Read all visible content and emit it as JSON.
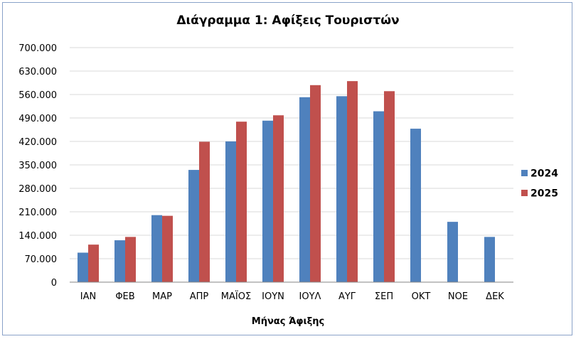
{
  "chart_data": {
    "type": "bar",
    "title": "Διάγραμμα 1: Αφίξεις Τουριστών",
    "xlabel": "Μήνας Άφιξης",
    "ylabel": "",
    "ylim": [
      0,
      700000
    ],
    "y_ticks": [
      "0",
      "70.000",
      "140.000",
      "210.000",
      "280.000",
      "350.000",
      "420.000",
      "490.000",
      "560.000",
      "630.000",
      "700.000"
    ],
    "categories": [
      "ΙΑΝ",
      "ΦΕΒ",
      "ΜΑΡ",
      "ΑΠΡ",
      "ΜΑΪΟΣ",
      "ΙΟΥΝ",
      "ΙΟΥΛ",
      "ΑΥΓ",
      "ΣΕΠ",
      "ΟΚΤ",
      "ΝΟΕ",
      "ΔΕΚ"
    ],
    "series": [
      {
        "name": "2024",
        "color": "#4f81bd",
        "values": [
          88000,
          125000,
          200000,
          335000,
          420000,
          482000,
          552000,
          555000,
          510000,
          458000,
          180000,
          135000
        ]
      },
      {
        "name": "2025",
        "color": "#c0504d",
        "values": [
          112000,
          135000,
          198000,
          419000,
          479000,
          498000,
          588000,
          600000,
          570000,
          null,
          null,
          null
        ]
      }
    ],
    "grid": true,
    "legend_position": "right"
  }
}
